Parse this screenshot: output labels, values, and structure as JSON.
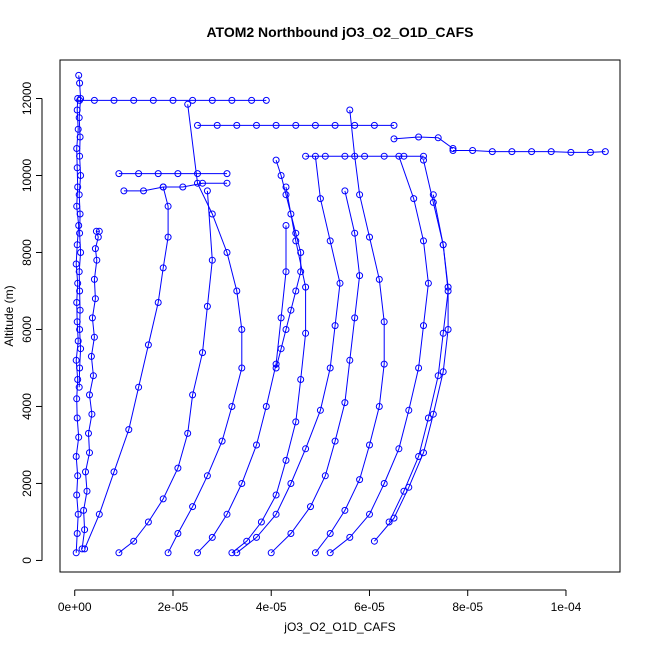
{
  "chart_data": {
    "type": "scatter",
    "title": "ATOM2 Northbound jO3_O2_O1D_CAFS",
    "xlabel": "jO3_O2_O1D_CAFS",
    "ylabel": "Altitude (m)",
    "xlim": [
      -3e-06,
      0.000111
    ],
    "ylim": [
      -300,
      13000
    ],
    "x_ticks": [
      0,
      2e-05,
      4e-05,
      6e-05,
      8e-05,
      0.0001
    ],
    "x_tick_labels": [
      "0e+00",
      "2e-05",
      "4e-05",
      "6e-05",
      "8e-05",
      "1e-04"
    ],
    "y_ticks": [
      0,
      2000,
      4000,
      6000,
      8000,
      10000,
      12000
    ],
    "y_tick_labels": [
      "0",
      "2000",
      "4000",
      "6000",
      "8000",
      "10000",
      "12000"
    ],
    "color": "#0000ff",
    "marker": "open-circle",
    "line": true,
    "grid": false,
    "series": [
      {
        "x": [
          3e-07,
          5e-07,
          7e-07,
          4e-07,
          6e-07,
          3e-07,
          8e-07,
          5e-07,
          4e-07,
          6e-07,
          3e-07,
          7e-07,
          5e-07,
          4e-07,
          6e-07,
          3e-07,
          5e-07,
          8e-07,
          4e-07,
          6e-07,
          5e-07,
          4e-07,
          7e-07,
          5e-07,
          6e-07
        ],
        "y": [
          200,
          700,
          1200,
          1700,
          2200,
          2700,
          3200,
          3700,
          4200,
          4700,
          5200,
          5700,
          6200,
          6700,
          7200,
          7700,
          8200,
          8700,
          9200,
          9700,
          10200,
          10700,
          11200,
          11700,
          12000
        ]
      },
      {
        "x": [
          8e-07,
          1e-06,
          1.2e-06,
          9e-07,
          1.1e-06,
          1e-06,
          1.2e-06,
          9e-07,
          1.1e-06,
          1e-06,
          1.2e-06,
          9e-07,
          1e-06,
          1.1e-06,
          1e-06,
          1.2e-06,
          1e-06,
          9e-07
        ],
        "y": [
          12600,
          12400,
          12000,
          11500,
          11000,
          10500,
          10000,
          9500,
          9000,
          8500,
          8000,
          7500,
          7000,
          6500,
          6000,
          5500,
          5000,
          4500
        ]
      },
      {
        "x": [
          1.5e-06,
          2e-06,
          1.8e-06,
          2.5e-06,
          2.2e-06,
          3e-06,
          2.8e-06,
          3.5e-06,
          3e-06,
          3.8e-06,
          3.4e-06,
          4e-06,
          3.6e-06,
          4.2e-06,
          4e-06,
          4.5e-06,
          4.2e-06,
          4.8e-06,
          4.4e-06,
          5e-06
        ],
        "y": [
          300,
          800,
          1300,
          1800,
          2300,
          2800,
          3300,
          3800,
          4300,
          4800,
          5300,
          5800,
          6300,
          6800,
          7300,
          7800,
          8100,
          8400,
          8550,
          8550
        ]
      },
      {
        "x": [
          1e-06,
          4e-06,
          8e-06,
          1.2e-05,
          1.6e-05,
          2e-05,
          2.4e-05,
          2.8e-05,
          3.2e-05,
          3.6e-05,
          3.9e-05
        ],
        "y": [
          11950,
          11950,
          11950,
          11950,
          11950,
          11950,
          11950,
          11950,
          11950,
          11950,
          11950
        ]
      },
      {
        "x": [
          2.5e-05,
          2.9e-05,
          3.3e-05,
          3.7e-05,
          4.1e-05,
          4.5e-05,
          4.9e-05,
          5.3e-05,
          5.7e-05,
          6.1e-05,
          6.5e-05
        ],
        "y": [
          11300,
          11300,
          11300,
          11300,
          11300,
          11300,
          11300,
          11300,
          11300,
          11300,
          11300
        ]
      },
      {
        "x": [
          9e-06,
          1.3e-05,
          1.7e-05,
          2.1e-05,
          2.5e-05,
          3.1e-05
        ],
        "y": [
          10050,
          10050,
          10050,
          10050,
          10050,
          10050
        ]
      },
      {
        "x": [
          1e-05,
          1.4e-05,
          1.8e-05,
          2.2e-05,
          2.6e-05,
          3.1e-05
        ],
        "y": [
          9600,
          9600,
          9700,
          9700,
          9800,
          9800
        ]
      },
      {
        "x": [
          4.7e-05,
          5.1e-05,
          5.5e-05,
          5.9e-05,
          6.3e-05,
          6.7e-05,
          7.1e-05
        ],
        "y": [
          10500,
          10500,
          10500,
          10500,
          10500,
          10500,
          10500
        ]
      },
      {
        "x": [
          7.7e-05,
          8.1e-05,
          8.5e-05,
          8.9e-05,
          9.3e-05,
          9.7e-05,
          0.000101,
          0.000105,
          0.000108
        ],
        "y": [
          10650,
          10650,
          10620,
          10620,
          10620,
          10620,
          10600,
          10600,
          10620
        ]
      },
      {
        "x": [
          6.5e-05,
          7e-05,
          7.4e-05,
          7.7e-05
        ],
        "y": [
          10950,
          11000,
          10980,
          10700
        ]
      },
      {
        "x": [
          9e-06,
          1.2e-05,
          1.5e-05,
          1.8e-05,
          2.1e-05,
          2.3e-05,
          2.4e-05,
          2.6e-05,
          2.7e-05,
          2.8e-05,
          2.7e-05
        ],
        "y": [
          200,
          500,
          1000,
          1600,
          2400,
          3300,
          4300,
          5400,
          6600,
          7800,
          9600
        ]
      },
      {
        "x": [
          2e-06,
          5e-06,
          8e-06,
          1.1e-05,
          1.3e-05,
          1.5e-05,
          1.7e-05,
          1.8e-05,
          1.9e-05,
          1.9e-05,
          1.8e-05
        ],
        "y": [
          300,
          1200,
          2300,
          3400,
          4500,
          5600,
          6700,
          7600,
          8400,
          9200,
          9700
        ]
      },
      {
        "x": [
          1.9e-05,
          2.1e-05,
          2.4e-05,
          2.7e-05,
          3e-05,
          3.2e-05,
          3.4e-05,
          3.4e-05,
          3.3e-05,
          3.1e-05,
          2.8e-05,
          2.5e-05,
          2.3e-05
        ],
        "y": [
          200,
          700,
          1400,
          2200,
          3100,
          4000,
          5000,
          6000,
          7000,
          8000,
          9000,
          9800,
          11850
        ]
      },
      {
        "x": [
          2.5e-05,
          2.8e-05,
          3.1e-05,
          3.4e-05,
          3.7e-05,
          3.9e-05,
          4.1e-05,
          4.2e-05,
          4.3e-05,
          4.3e-05
        ],
        "y": [
          200,
          600,
          1200,
          2000,
          3000,
          4000,
          5100,
          6300,
          7500,
          8700
        ]
      },
      {
        "x": [
          3.2e-05,
          3.5e-05,
          3.8e-05,
          4.1e-05,
          4.3e-05,
          4.5e-05,
          4.6e-05,
          4.7e-05,
          4.7e-05,
          4.5e-05,
          4.3e-05
        ],
        "y": [
          200,
          500,
          1000,
          1700,
          2600,
          3600,
          4700,
          5900,
          7100,
          8300,
          9700
        ]
      },
      {
        "x": [
          3.3e-05,
          3.7e-05,
          4.1e-05,
          4.4e-05,
          4.7e-05,
          5e-05,
          5.2e-05,
          5.3e-05,
          5.4e-05,
          5.2e-05,
          5e-05,
          4.9e-05
        ],
        "y": [
          200,
          600,
          1200,
          2000,
          2900,
          3900,
          5000,
          6100,
          7200,
          8300,
          9400,
          10500
        ]
      },
      {
        "x": [
          4e-05,
          4.4e-05,
          4.8e-05,
          5.1e-05,
          5.3e-05,
          5.5e-05,
          5.6e-05,
          5.7e-05,
          5.8e-05,
          5.7e-05,
          5.5e-05
        ],
        "y": [
          200,
          700,
          1400,
          2200,
          3100,
          4100,
          5200,
          6300,
          7400,
          8500,
          9600
        ]
      },
      {
        "x": [
          4.9e-05,
          5.2e-05,
          5.5e-05,
          5.8e-05,
          6e-05,
          6.2e-05,
          6.3e-05,
          6.3e-05,
          6.2e-05,
          6e-05,
          5.8e-05,
          5.7e-05,
          5.6e-05
        ],
        "y": [
          200,
          700,
          1300,
          2100,
          3000,
          4000,
          5100,
          6200,
          7300,
          8400,
          9500,
          10500,
          11700
        ]
      },
      {
        "x": [
          5.2e-05,
          5.6e-05,
          6e-05,
          6.3e-05,
          6.6e-05,
          6.8e-05,
          7e-05,
          7.1e-05,
          7.2e-05,
          7.1e-05,
          6.9e-05,
          6.6e-05
        ],
        "y": [
          200,
          600,
          1200,
          2000,
          2900,
          3900,
          5000,
          6100,
          7200,
          8300,
          9400,
          10500
        ]
      },
      {
        "x": [
          6.1e-05,
          6.5e-05,
          6.8e-05,
          7.1e-05,
          7.3e-05,
          7.5e-05,
          7.6e-05,
          7.6e-05,
          7.5e-05,
          7.3e-05,
          7.1e-05
        ],
        "y": [
          500,
          1100,
          1900,
          2800,
          3800,
          4900,
          6000,
          7100,
          8200,
          9300,
          10400
        ]
      },
      {
        "x": [
          6.4e-05,
          6.7e-05,
          7e-05,
          7.2e-05,
          7.4e-05,
          7.5e-05,
          7.6e-05,
          7.5e-05,
          7.3e-05
        ],
        "y": [
          1000,
          1800,
          2700,
          3700,
          4800,
          5900,
          7000,
          8200,
          9500
        ]
      },
      {
        "x": [
          4.1e-05,
          4.2e-05,
          4.3e-05,
          4.4e-05,
          4.5e-05,
          4.6e-05,
          4.6e-05,
          4.5e-05,
          4.4e-05,
          4.3e-05,
          4.2e-05,
          4.1e-05
        ],
        "y": [
          10400,
          10000,
          9500,
          9000,
          8500,
          8000,
          7500,
          7000,
          6500,
          6000,
          5500,
          5000
        ]
      }
    ]
  }
}
